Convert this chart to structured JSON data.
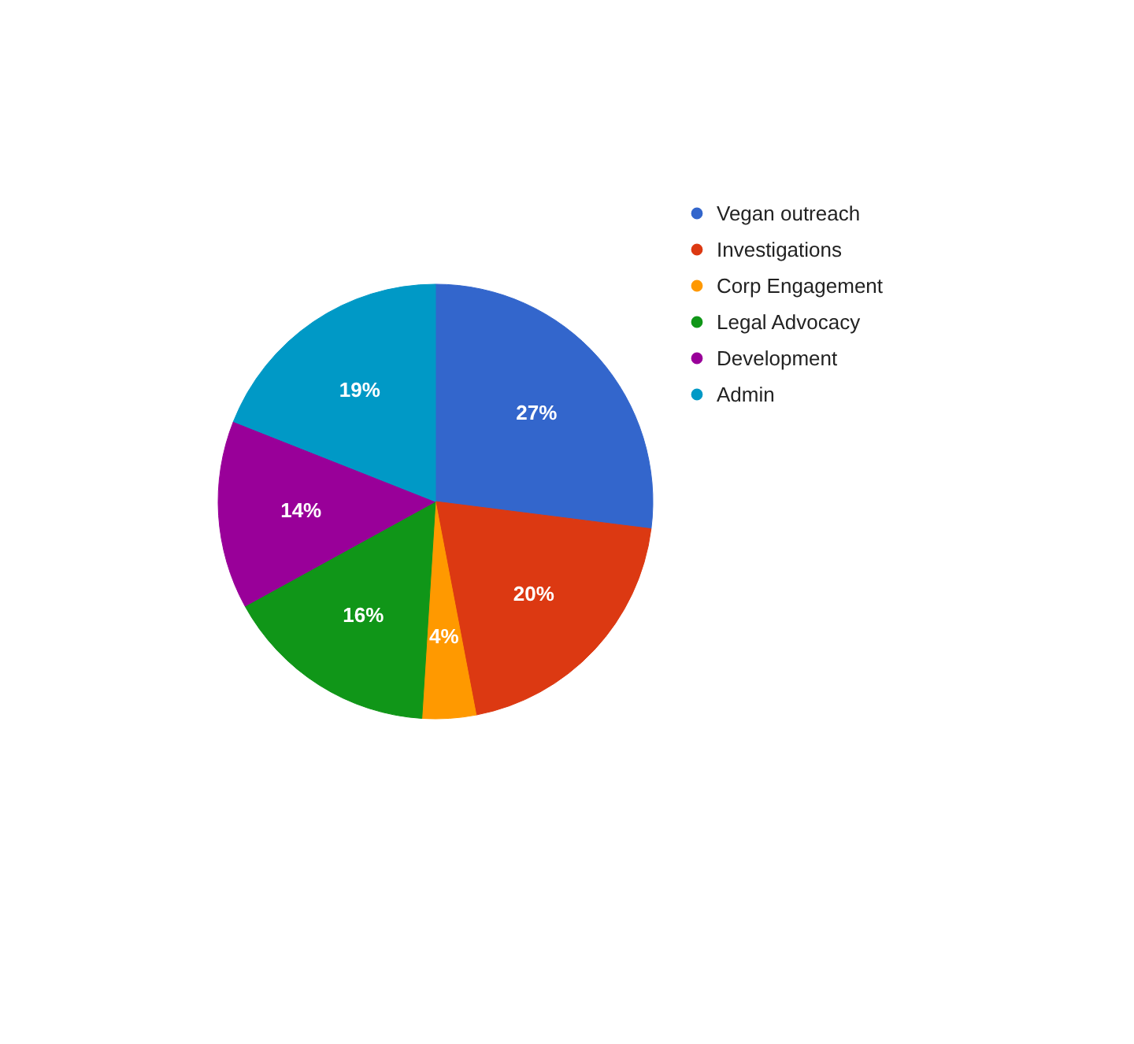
{
  "chart_data": {
    "type": "pie",
    "categories": [
      "Vegan outreach",
      "Investigations",
      "Corp Engagement",
      "Legal Advocacy",
      "Development",
      "Admin"
    ],
    "values": [
      27,
      20,
      4,
      16,
      14,
      19
    ],
    "colors": [
      "#3366cc",
      "#dc3912",
      "#ff9900",
      "#109618",
      "#990099",
      "#0099c6"
    ],
    "value_labels": [
      "27%",
      "20%",
      "4%",
      "16%",
      "14%",
      "19%"
    ],
    "legend": "top right"
  }
}
